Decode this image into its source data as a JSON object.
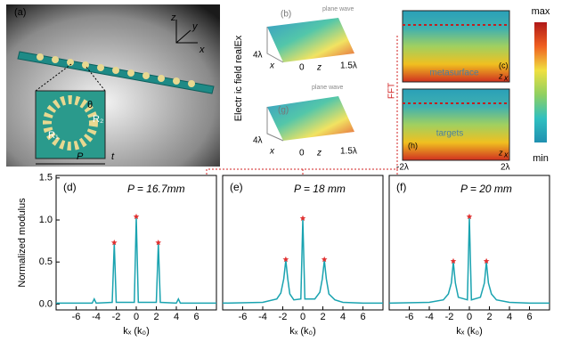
{
  "panels": {
    "a": {
      "label": "(a)",
      "axes": [
        "z",
        "y",
        "x"
      ],
      "theta": "θ",
      "r1": "R₁",
      "r2": "R₂",
      "period": "P",
      "thickness": "t"
    },
    "field_label": "Electr ic field realEx",
    "b": {
      "label": "(b)",
      "wave": "plane wave",
      "z_range": "4λ",
      "x_axis": "x",
      "zero": "0",
      "z_axis": "z",
      "x_range": "1.5λ"
    },
    "g": {
      "label": "(g)",
      "wave": "plane wave",
      "z_range": "4λ",
      "x_axis": "x",
      "zero": "0",
      "z_axis": "z",
      "x_range": "1.5λ"
    },
    "c": {
      "label": "(c)",
      "text": "metasurface",
      "z_axis": "z",
      "x_axis": "x"
    },
    "h": {
      "label": "(h)",
      "text": "targets",
      "z_axis": "z",
      "x_axis": "x",
      "x_min": "-2λ",
      "x_max": "2λ"
    },
    "colorbar": {
      "max": "max",
      "min": "min"
    },
    "fft": "FFT"
  },
  "chart_data": [
    {
      "type": "line",
      "title": "(d)",
      "annotation": "P = 16.7mm",
      "ylabel": "Normalized modulus",
      "xlabel": "kₓ (k₀)",
      "xlim": [
        -8,
        8
      ],
      "ylim": [
        -0.07,
        1.53
      ],
      "xticks": [
        -6,
        -4,
        -2,
        0,
        2,
        4,
        6
      ],
      "yticks": [
        {
          "value": 0,
          "label": "0.0"
        },
        {
          "value": 0.5,
          "label": "0.5"
        },
        {
          "value": 1,
          "label": "1.0"
        },
        {
          "value": 1.5,
          "label": "1.5"
        }
      ],
      "series": [
        {
          "color": "#1aa3b0",
          "x": [
            -8,
            -4.4,
            -4.2,
            -4.0,
            -2.4,
            -2.2,
            -2.0,
            -0.2,
            0,
            0.2,
            2.0,
            2.2,
            2.4,
            4.0,
            4.2,
            4.4,
            8
          ],
          "values": [
            0.01,
            0.01,
            0.06,
            0.01,
            0.02,
            0.72,
            0.02,
            0.02,
            1.03,
            0.02,
            0.02,
            0.72,
            0.02,
            0.01,
            0.06,
            0.01,
            0.01
          ]
        }
      ],
      "markers": {
        "color": "#e03030",
        "x": [
          -2.2,
          0,
          2.2
        ],
        "values": [
          0.73,
          1.04,
          0.73
        ]
      }
    },
    {
      "type": "line",
      "title": "(e)",
      "annotation": "P = 18 mm",
      "xlabel": "kₓ (k₀)",
      "xlim": [
        -8,
        8
      ],
      "ylim": [
        -0.07,
        1.53
      ],
      "xticks": [
        -6,
        -4,
        -2,
        0,
        2,
        4,
        6
      ],
      "series": [
        {
          "color": "#1aa3b0",
          "x": [
            -8,
            -4,
            -2.6,
            -2.2,
            -1.9,
            -1.7,
            -1.5,
            -1.3,
            -0.9,
            -0.2,
            0,
            0.2,
            1.2,
            1.7,
            1.95,
            2.15,
            2.35,
            2.6,
            3.2,
            4,
            6,
            8
          ],
          "values": [
            0.01,
            0.02,
            0.06,
            0.13,
            0.3,
            0.52,
            0.3,
            0.12,
            0.05,
            0.06,
            1.01,
            0.06,
            0.06,
            0.14,
            0.3,
            0.52,
            0.3,
            0.12,
            0.05,
            0.02,
            0.01,
            0.01
          ]
        }
      ],
      "markers": {
        "color": "#e03030",
        "x": [
          -1.7,
          0,
          2.15
        ],
        "values": [
          0.53,
          1.02,
          0.53
        ]
      }
    },
    {
      "type": "line",
      "title": "(f)",
      "annotation": "P = 20 mm",
      "xlabel": "kₓ (k₀)",
      "xlim": [
        -8,
        8
      ],
      "ylim": [
        -0.07,
        1.53
      ],
      "xticks": [
        -6,
        -4,
        -2,
        0,
        2,
        4,
        6
      ],
      "series": [
        {
          "color": "#1aa3b0",
          "x": [
            -8,
            -4,
            -2.6,
            -2.1,
            -1.8,
            -1.6,
            -1.4,
            -1.1,
            -0.2,
            0,
            0.2,
            1.1,
            1.5,
            1.7,
            1.9,
            2.2,
            2.7,
            4,
            6,
            8
          ],
          "values": [
            0.01,
            0.02,
            0.05,
            0.12,
            0.25,
            0.5,
            0.25,
            0.08,
            0.05,
            1.03,
            0.05,
            0.08,
            0.25,
            0.5,
            0.25,
            0.12,
            0.05,
            0.02,
            0.01,
            0.01
          ]
        }
      ],
      "markers": {
        "color": "#e03030",
        "x": [
          -1.6,
          0,
          1.7
        ],
        "values": [
          0.51,
          1.04,
          0.51
        ]
      }
    }
  ]
}
